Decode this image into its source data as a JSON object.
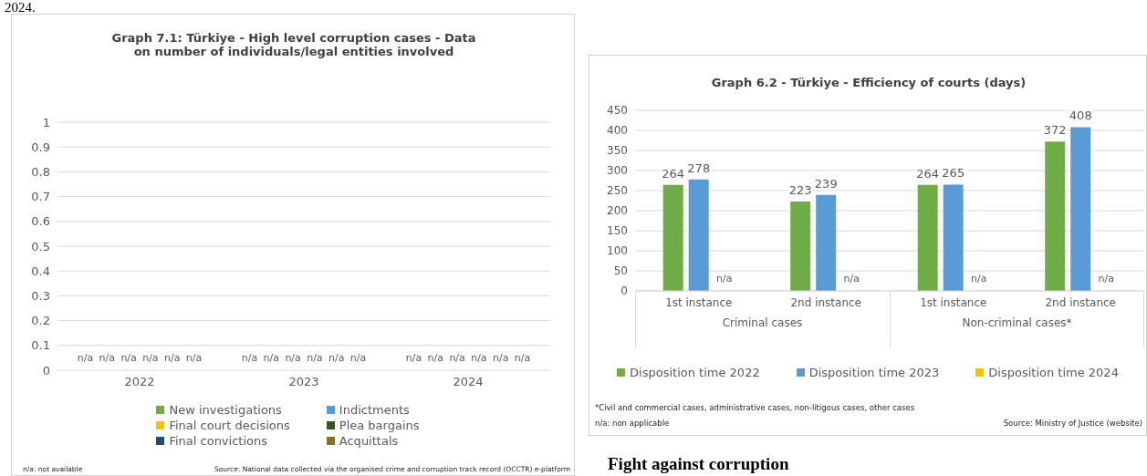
{
  "chart_data": [
    {
      "type": "bar",
      "title": "Graph 7.1: Türkiye - High level corruption cases - Data on number of individuals/legal entities involved",
      "categories": [
        "2022",
        "2023",
        "2024"
      ],
      "series": [
        {
          "name": "New investigations",
          "color": "#70ad47",
          "values": [
            null,
            null,
            null
          ],
          "value_labels": [
            "n/a",
            "n/a",
            "n/a"
          ]
        },
        {
          "name": "Indictments",
          "color": "#5b9bd5",
          "values": [
            null,
            null,
            null
          ],
          "value_labels": [
            "n/a",
            "n/a",
            "n/a"
          ]
        },
        {
          "name": "Final court decisions",
          "color": "#ffc000",
          "values": [
            null,
            null,
            null
          ],
          "value_labels": [
            "n/a",
            "n/a",
            "n/a"
          ]
        },
        {
          "name": "Plea bargains",
          "color": "#375623",
          "values": [
            null,
            null,
            null
          ],
          "value_labels": [
            "n/a",
            "n/a",
            "n/a"
          ]
        },
        {
          "name": "Final convictions",
          "color": "#1f4e79",
          "values": [
            null,
            null,
            null
          ],
          "value_labels": [
            "n/a",
            "n/a",
            "n/a"
          ]
        },
        {
          "name": "Acquittals",
          "color": "#8b6d2b",
          "values": [
            null,
            null,
            null
          ],
          "value_labels": [
            "n/a",
            "n/a",
            "n/a"
          ]
        }
      ],
      "ylim": [
        0,
        1
      ],
      "yticks": [
        0,
        0.1,
        0.2,
        0.3,
        0.4,
        0.5,
        0.6,
        0.7,
        0.8,
        0.9,
        1
      ],
      "grid": "y",
      "legend": "bottom",
      "annotations": [
        "2024.",
        "n/a: not available",
        "Source: National data collected via the organised crime and corruption track record (OCCTR) e-platform"
      ]
    },
    {
      "type": "bar",
      "title": "Graph 6.2 - Türkiye - Efficiency of courts (days)",
      "categories": [
        "1st instance",
        "2nd instance",
        "1st instance",
        "2nd instance"
      ],
      "series": [
        {
          "name": "Disposition time 2022",
          "color": "#70ad47",
          "values": [
            264,
            223,
            264,
            372
          ],
          "value_labels": [
            "264",
            "223",
            "264",
            "372"
          ]
        },
        {
          "name": "Disposition time 2023",
          "color": "#5b9bd5",
          "values": [
            278,
            239,
            265,
            408
          ],
          "value_labels": [
            "278",
            "239",
            "265",
            "408"
          ]
        },
        {
          "name": "Disposition time 2024",
          "color": "#ffc000",
          "values": [
            null,
            null,
            null,
            null
          ],
          "value_labels": [
            "n/a",
            "n/a",
            "n/a",
            "n/a"
          ]
        }
      ],
      "ylim": [
        0,
        450
      ],
      "yticks": [
        0,
        50,
        100,
        150,
        200,
        250,
        300,
        350,
        400,
        450
      ],
      "grid": "y",
      "legend": "bottom",
      "annotations": [
        "Criminal cases",
        "Non-criminal cases*",
        "*Civil and commercial cases, administrative cases, non-litigous cases, other cases",
        "n/a: non applicable",
        "Source: Ministry of Justice (website)",
        "Fight against corruption"
      ]
    }
  ]
}
